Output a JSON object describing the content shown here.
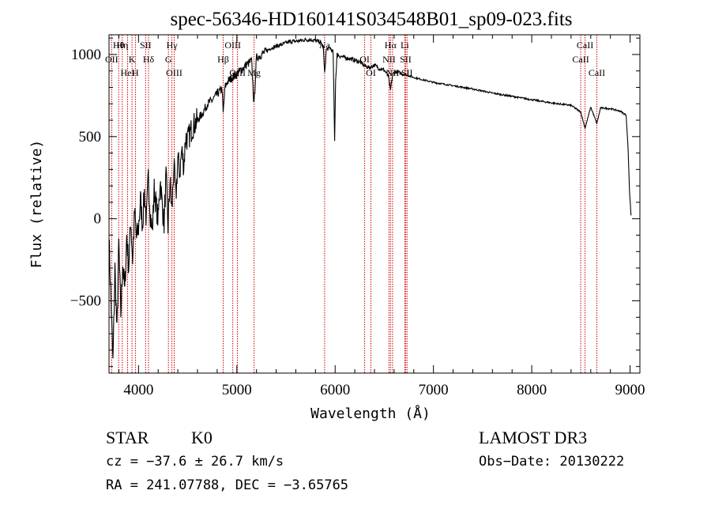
{
  "chart_data": {
    "type": "line",
    "title": "spec-56346-HD160141S034548B01_sp09-023.fits",
    "xlabel": "Wavelength (Å)",
    "ylabel": "Flux (relative)",
    "xlim": [
      3700,
      9100
    ],
    "ylim": [
      -940,
      1120
    ],
    "xticks": [
      4000,
      5000,
      6000,
      7000,
      8000,
      9000
    ],
    "yticks": [
      -500,
      0,
      500,
      1000
    ],
    "series": [
      {
        "name": "flux",
        "x": [
          3700,
          3720,
          3740,
          3760,
          3780,
          3800,
          3820,
          3840,
          3860,
          3880,
          3900,
          3920,
          3940,
          3960,
          3980,
          4000,
          4020,
          4040,
          4060,
          4080,
          4100,
          4120,
          4140,
          4160,
          4180,
          4200,
          4220,
          4240,
          4260,
          4280,
          4300,
          4320,
          4340,
          4360,
          4380,
          4400,
          4420,
          4440,
          4460,
          4480,
          4500,
          4550,
          4600,
          4650,
          4700,
          4750,
          4800,
          4850,
          4861,
          4880,
          4900,
          4950,
          5000,
          5050,
          5100,
          5150,
          5175,
          5200,
          5250,
          5300,
          5350,
          5400,
          5450,
          5500,
          5550,
          5600,
          5650,
          5700,
          5750,
          5800,
          5850,
          5880,
          5893,
          5910,
          5950,
          5980,
          5995,
          6005,
          6020,
          6050,
          6100,
          6150,
          6200,
          6250,
          6300,
          6350,
          6400,
          6450,
          6500,
          6540,
          6563,
          6585,
          6620,
          6700,
          6800,
          6900,
          7000,
          7200,
          7400,
          7600,
          7800,
          8000,
          8200,
          8400,
          8498,
          8542,
          8600,
          8662,
          8700,
          8800,
          8900,
          8960,
          8980,
          8995,
          9010
        ],
        "y": [
          -120,
          -500,
          -880,
          -300,
          -700,
          -150,
          -580,
          -260,
          -450,
          -100,
          -300,
          0,
          -250,
          40,
          -120,
          -60,
          120,
          -40,
          160,
          -20,
          260,
          30,
          -80,
          180,
          80,
          -10,
          250,
          90,
          -30,
          260,
          -50,
          230,
          40,
          330,
          120,
          370,
          280,
          420,
          320,
          500,
          480,
          560,
          600,
          640,
          700,
          720,
          760,
          790,
          640,
          800,
          830,
          860,
          880,
          910,
          940,
          960,
          690,
          980,
          1000,
          1020,
          1040,
          1050,
          1060,
          1070,
          1080,
          1080,
          1085,
          1090,
          1090,
          1085,
          1075,
          1040,
          880,
          1030,
          1040,
          1010,
          470,
          840,
          1000,
          990,
          980,
          975,
          965,
          955,
          930,
          920,
          935,
          915,
          905,
          870,
          780,
          880,
          895,
          880,
          860,
          845,
          830,
          810,
          790,
          765,
          745,
          725,
          705,
          690,
          650,
          550,
          680,
          580,
          675,
          670,
          655,
          630,
          420,
          160,
          20
        ]
      }
    ],
    "lines_top": [
      {
        "label": "Hθ",
        "wave": 3798
      },
      {
        "label": "OII",
        "wave": 3727
      },
      {
        "label": "HeI",
        "wave": 3889
      },
      {
        "label": "Hη",
        "wave": 3835
      },
      {
        "label": "K",
        "wave": 3934
      },
      {
        "label": "H",
        "wave": 3968
      },
      {
        "label": "SII",
        "wave": 4072
      },
      {
        "label": "Hδ",
        "wave": 4102
      },
      {
        "label": "OIII",
        "wave": 4363
      },
      {
        "label": "Hγ",
        "wave": 4340
      },
      {
        "label": "G",
        "wave": 4304
      },
      {
        "label": "OIII",
        "wave": 5007
      },
      {
        "label": "OIII",
        "wave": 4959
      },
      {
        "label": "Hβ",
        "wave": 4861
      },
      {
        "label": "Mg",
        "wave": 5175
      },
      {
        "label": "Na",
        "wave": 5893
      },
      {
        "label": "OI",
        "wave": 6300
      },
      {
        "label": "OI",
        "wave": 6364
      },
      {
        "label": "Hα",
        "wave": 6563
      },
      {
        "label": "SII",
        "wave": 6717
      },
      {
        "label": "NII",
        "wave": 6584
      },
      {
        "label": "Li",
        "wave": 6708
      },
      {
        "label": "NII",
        "wave": 6548
      },
      {
        "label": "SII",
        "wave": 6731
      },
      {
        "label": "CaII",
        "wave": 8542
      },
      {
        "label": "CaII",
        "wave": 8498
      },
      {
        "label": "CaII",
        "wave": 8662
      }
    ]
  },
  "info": {
    "object_class": "STAR",
    "subclass": "K0",
    "survey": "LAMOST DR3",
    "cz_line": "cz = −37.6 ± 26.7 km/s",
    "obs_date": "Obs−Date: 20130222",
    "coords": "RA = 241.07788, DEC =  −3.65765"
  },
  "colors": {
    "line_marker": "#cc0000",
    "spectrum": "#000000"
  }
}
